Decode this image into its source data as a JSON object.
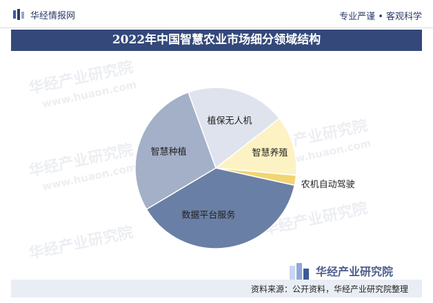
{
  "header": {
    "brand": "华经情报网",
    "tagline": "专业严谨 • 客观科学"
  },
  "title": "2022年中国智慧农业市场细分领域结构",
  "footer": {
    "source": "资料来源：公开资料，华经产业研究院整理",
    "logo_text": "华经产业研究院"
  },
  "watermark": {
    "text": "华经产业研究院",
    "url": "www.huaon.com"
  },
  "chart_data": {
    "type": "pie",
    "start_angle_deg": -20,
    "direction": "clockwise",
    "slices": [
      {
        "label": "植保无人机",
        "value": 20,
        "color": "#dfe3ee"
      },
      {
        "label": "智慧养殖",
        "value": 12,
        "color": "#fdf2c3"
      },
      {
        "label": "农机自动驾驶",
        "value": 2,
        "color": "#f2d572"
      },
      {
        "label": "数据平台服务",
        "value": 38,
        "color": "#6a7fa5"
      },
      {
        "label": "智慧种植",
        "value": 28,
        "color": "#a3b0c8"
      }
    ]
  }
}
